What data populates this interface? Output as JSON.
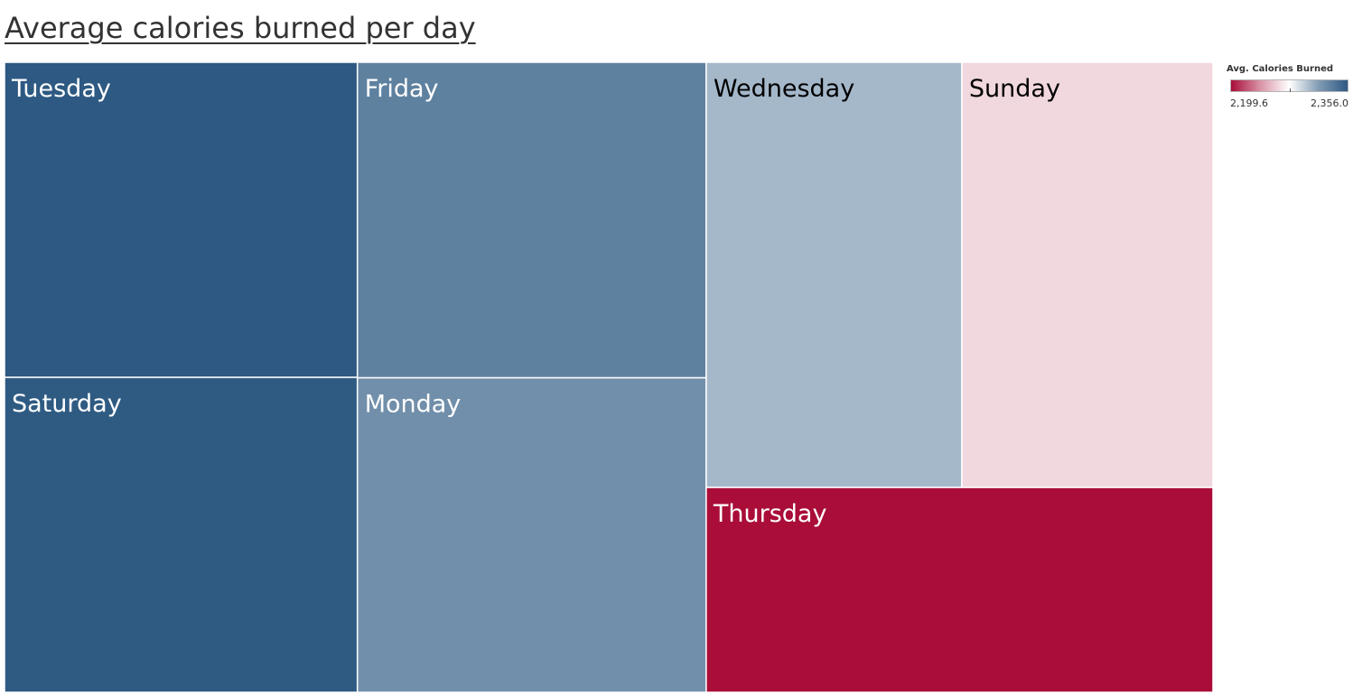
{
  "chart_data": {
    "type": "treemap",
    "title": "Average calories burned per day",
    "color_measure": "Avg. Calories Burned",
    "color_range": [
      2199.6,
      2356.0
    ],
    "color_range_labels": [
      "2,199.6",
      "2,356.0"
    ],
    "colors": {
      "low": "#a90d38",
      "mid": "#ffffff",
      "high": "#2d5982"
    },
    "categories": [
      "Tuesday",
      "Saturday",
      "Friday",
      "Monday",
      "Wednesday",
      "Sunday",
      "Thursday"
    ],
    "values": [
      2356.0,
      2354.8,
      2332.0,
      2324.2,
      2303.0,
      2263.0,
      2199.6
    ]
  }
}
